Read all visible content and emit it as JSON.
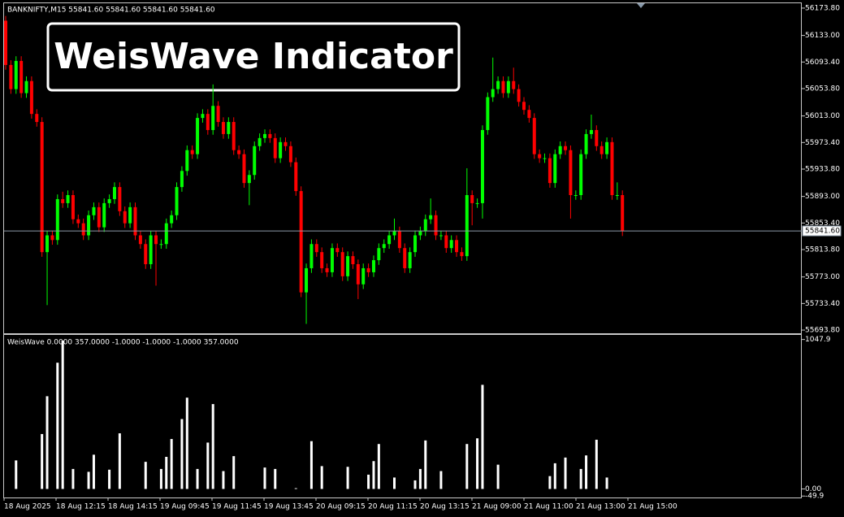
{
  "chart_data": [
    {
      "type": "candlestick",
      "title": "BANKNIFTY,M15  55841.60 55841.60 55841.60 55841.60",
      "annotation": "WeisWave Indicator",
      "up_color": "#00ff00",
      "down_color": "#ff0000",
      "open": [
        56155,
        56089,
        56053,
        56095,
        56047,
        56065,
        56016,
        56004,
        55810,
        55835,
        55828,
        55889,
        55883,
        55895,
        55859,
        55853,
        55835,
        55865,
        55877,
        55847,
        55883,
        55889,
        55907,
        55871,
        55853,
        55877,
        55835,
        55822,
        55792,
        55835,
        55822,
        55822,
        55853,
        55865,
        55907,
        55931,
        55962,
        55956,
        56010,
        56016,
        55992,
        56028,
        56004,
        55986,
        56004,
        55962,
        55956,
        55913,
        55925,
        55968,
        55980,
        55986,
        55980,
        55950,
        55974,
        55968,
        55944,
        55901,
        55750,
        55786,
        55822,
        55810,
        55786,
        55780,
        55816,
        55810,
        55774,
        55804,
        55792,
        55762,
        55786,
        55780,
        55798,
        55816,
        55822,
        55835,
        55841,
        55816,
        55786,
        55810,
        55835,
        55841,
        55859,
        55865,
        55835,
        55835,
        55816,
        55828,
        55810,
        55804,
        55895,
        55883,
        55883,
        55992,
        56041,
        56053,
        56065,
        56047,
        56065,
        56053,
        56034,
        56022,
        56010,
        55956,
        55950,
        55950,
        55913,
        55956,
        55968,
        55962,
        55895,
        55895,
        55956,
        55986,
        55992,
        55968,
        55956,
        55974,
        55895,
        55895
      ],
      "high": [
        56162,
        56096,
        56102,
        56102,
        56072,
        56072,
        56023,
        56011,
        55842,
        55842,
        55896,
        55900,
        55902,
        55902,
        55866,
        55860,
        55872,
        55884,
        55884,
        55890,
        55896,
        55914,
        55914,
        55878,
        55884,
        55884,
        55842,
        55829,
        55842,
        55842,
        55829,
        55860,
        55872,
        55914,
        55938,
        55969,
        55969,
        56017,
        56023,
        56023,
        56060,
        56035,
        56011,
        56011,
        56011,
        55969,
        55963,
        55932,
        55975,
        55987,
        55993,
        55993,
        55987,
        55981,
        55981,
        55975,
        55951,
        55908,
        55793,
        55829,
        55829,
        55817,
        55793,
        55823,
        55823,
        55817,
        55811,
        55811,
        55799,
        55793,
        55793,
        55805,
        55823,
        55829,
        55842,
        55860,
        55848,
        55823,
        55817,
        55842,
        55848,
        55866,
        55890,
        55872,
        55842,
        55842,
        55835,
        55835,
        55817,
        55935,
        55902,
        55890,
        55999,
        56048,
        56100,
        56072,
        56072,
        56072,
        56085,
        56060,
        56041,
        56029,
        56017,
        55963,
        55957,
        55957,
        55963,
        55975,
        55975,
        55969,
        55902,
        55963,
        55993,
        56015,
        55999,
        55975,
        55981,
        55981,
        55914,
        55902
      ],
      "low": [
        56082,
        56046,
        56046,
        56040,
        56040,
        56009,
        55997,
        55803,
        55731,
        55821,
        55821,
        55876,
        55876,
        55852,
        55846,
        55828,
        55828,
        55858,
        55840,
        55840,
        55876,
        55882,
        55864,
        55846,
        55846,
        55828,
        55815,
        55785,
        55785,
        55760,
        55815,
        55815,
        55846,
        55858,
        55900,
        55924,
        55949,
        55949,
        56003,
        55985,
        55985,
        55997,
        55979,
        55979,
        55955,
        55949,
        55906,
        55880,
        55918,
        55961,
        55973,
        55973,
        55943,
        55943,
        55961,
        55937,
        55894,
        55743,
        55703,
        55779,
        55803,
        55779,
        55773,
        55773,
        55803,
        55767,
        55767,
        55785,
        55740,
        55755,
        55773,
        55773,
        55791,
        55809,
        55815,
        55828,
        55809,
        55779,
        55779,
        55803,
        55828,
        55834,
        55852,
        55828,
        55828,
        55809,
        55809,
        55803,
        55797,
        55797,
        55850,
        55876,
        55860,
        55985,
        56034,
        56046,
        56040,
        56040,
        56046,
        56027,
        56015,
        56003,
        55949,
        55943,
        55943,
        55906,
        55906,
        55949,
        55955,
        55860,
        55888,
        55888,
        55949,
        55979,
        55961,
        55949,
        55949,
        55888,
        55888,
        55834
      ],
      "close": [
        56089,
        56053,
        56095,
        56047,
        56065,
        56016,
        56004,
        55810,
        55835,
        55828,
        55889,
        55883,
        55895,
        55859,
        55853,
        55835,
        55865,
        55877,
        55847,
        55883,
        55889,
        55907,
        55871,
        55853,
        55877,
        55835,
        55822,
        55792,
        55835,
        55822,
        55822,
        55853,
        55865,
        55907,
        55931,
        55962,
        55956,
        56010,
        56016,
        55992,
        56028,
        56004,
        55986,
        56004,
        55962,
        55956,
        55913,
        55925,
        55968,
        55980,
        55986,
        55980,
        55950,
        55974,
        55968,
        55944,
        55901,
        55750,
        55786,
        55822,
        55810,
        55786,
        55780,
        55816,
        55810,
        55774,
        55804,
        55792,
        55762,
        55786,
        55780,
        55798,
        55816,
        55822,
        55835,
        55841,
        55816,
        55786,
        55810,
        55835,
        55841,
        55859,
        55865,
        55835,
        55835,
        55816,
        55828,
        55810,
        55804,
        55895,
        55883,
        55883,
        55992,
        56041,
        56053,
        56065,
        56047,
        56065,
        56053,
        56034,
        56022,
        56010,
        55956,
        55950,
        55950,
        55913,
        55956,
        55968,
        55962,
        55895,
        55895,
        55956,
        55986,
        55992,
        55968,
        55956,
        55974,
        55895,
        55895,
        55841.6
      ],
      "ylim": [
        55689,
        56181
      ],
      "yticks": [
        {
          "value": 56173.8,
          "label": "56173.80"
        },
        {
          "value": 56133,
          "label": "56133.00"
        },
        {
          "value": 56093.4,
          "label": "56093.40"
        },
        {
          "value": 56053.8,
          "label": "56053.80"
        },
        {
          "value": 56013,
          "label": "56013.00"
        },
        {
          "value": 55973.4,
          "label": "55973.40"
        },
        {
          "value": 55933.8,
          "label": "55933.80"
        },
        {
          "value": 55893,
          "label": "55893.00"
        },
        {
          "value": 55853.4,
          "label": "55853.40"
        },
        {
          "value": 55813.8,
          "label": "55813.80"
        },
        {
          "value": 55773,
          "label": "55773.00"
        },
        {
          "value": 55733.4,
          "label": "55733.40"
        },
        {
          "value": 55693.8,
          "label": "55693.80"
        }
      ],
      "current_price": {
        "value": 55841.6,
        "label": "55841.60"
      },
      "xtick_labels": [
        "18 Aug 2025",
        "18 Aug 12:15",
        "18 Aug 14:15",
        "19 Aug 09:45",
        "19 Aug 11:45",
        "19 Aug 13:45",
        "20 Aug 09:15",
        "20 Aug 11:15",
        "20 Aug 13:15",
        "21 Aug 09:00",
        "21 Aug 11:00",
        "21 Aug 13:00",
        "21 Aug 15:00"
      ]
    },
    {
      "type": "bar",
      "title": "WeisWave 0.0000 357.0000 -1.0000 -1.0000 -1.0000 357.0000",
      "color": "#ffffff",
      "values": [
        0,
        0,
        200,
        0,
        0,
        0,
        0,
        385,
        650,
        0,
        885,
        1040,
        0,
        140,
        0,
        0,
        120,
        240,
        0,
        0,
        135,
        0,
        390,
        0,
        0,
        0,
        0,
        190,
        0,
        0,
        140,
        225,
        350,
        0,
        490,
        640,
        0,
        140,
        0,
        325,
        595,
        0,
        125,
        0,
        230,
        0,
        0,
        0,
        0,
        0,
        150,
        0,
        140,
        0,
        0,
        0,
        5,
        0,
        0,
        335,
        0,
        160,
        0,
        0,
        0,
        0,
        155,
        0,
        0,
        0,
        100,
        195,
        315,
        0,
        0,
        80,
        0,
        0,
        0,
        60,
        140,
        340,
        0,
        0,
        125,
        0,
        0,
        0,
        0,
        315,
        0,
        355,
        730,
        0,
        0,
        170,
        0,
        0,
        0,
        0,
        0,
        0,
        0,
        0,
        0,
        90,
        180,
        0,
        220,
        0,
        0,
        140,
        235,
        0,
        345,
        0,
        80,
        0,
        0,
        0
      ],
      "ylim": [
        -60,
        1080
      ],
      "yticks": [
        {
          "value": 1047.9,
          "label": "1047.9"
        },
        {
          "value": 0,
          "label": "0.00"
        },
        {
          "value": -49.9,
          "label": "-49.9"
        }
      ]
    }
  ]
}
